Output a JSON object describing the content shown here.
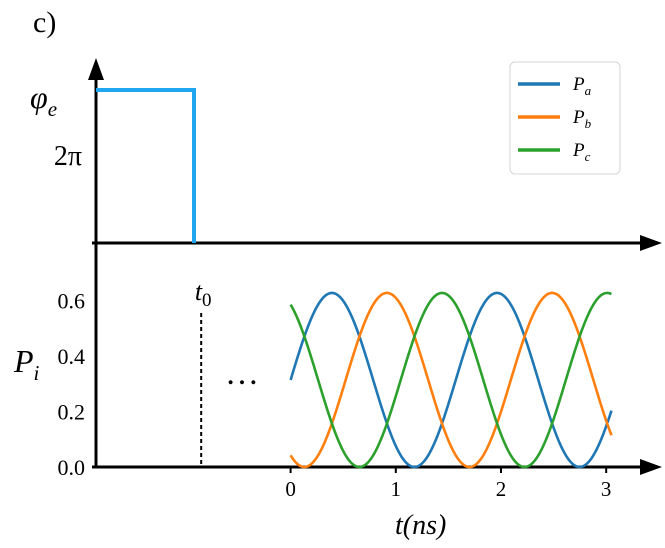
{
  "panel_label": "c)",
  "chart_data": [
    {
      "type": "line",
      "panel": "top",
      "ylabel_symbol": "φ",
      "ylabel_subscript": "e",
      "yticks": [
        {
          "value": 6.2832,
          "label": "2π"
        }
      ],
      "ylim": [
        0,
        7.6
      ],
      "series": [
        {
          "points": [
            [
              -1,
              6.2832
            ],
            [
              0.23,
              6.2832
            ],
            [
              0.23,
              0
            ]
          ],
          "color": "#1ea7f0"
        }
      ]
    },
    {
      "type": "line",
      "panel": "bottom",
      "xlabel_main": "t",
      "xlabel_paren": "(ns)",
      "ylabel_symbol": "P",
      "ylabel_subscript": "i",
      "xlim": [
        -1.85,
        3.35
      ],
      "ylim": [
        0,
        0.72
      ],
      "xticks": [
        0,
        1,
        2,
        3
      ],
      "yticks": [
        0.0,
        0.2,
        0.4,
        0.6
      ],
      "ytick_labels": [
        "0.0",
        "0.2",
        "0.4",
        "0.6"
      ],
      "t0_label": "t",
      "t0_subscript": "0",
      "t0_marker_x": -0.85,
      "ellipsis": "…",
      "curve_model": {
        "amplitude": 0.3133,
        "offset": 0.3133,
        "period_ns": 1.57,
        "t_start": 0,
        "t_end": 3.05,
        "sample_step": 0.01
      },
      "series": [
        {
          "name": "P_a",
          "label_main": "P",
          "label_sub": "a",
          "color": "#1f77b4",
          "phase_deg": 0
        },
        {
          "name": "P_b",
          "label_main": "P",
          "label_sub": "b",
          "color": "#ff7f0e",
          "phase_deg": 120
        },
        {
          "name": "P_c",
          "label_main": "P",
          "label_sub": "c",
          "color": "#2ca02c",
          "phase_deg": 240
        }
      ]
    }
  ]
}
